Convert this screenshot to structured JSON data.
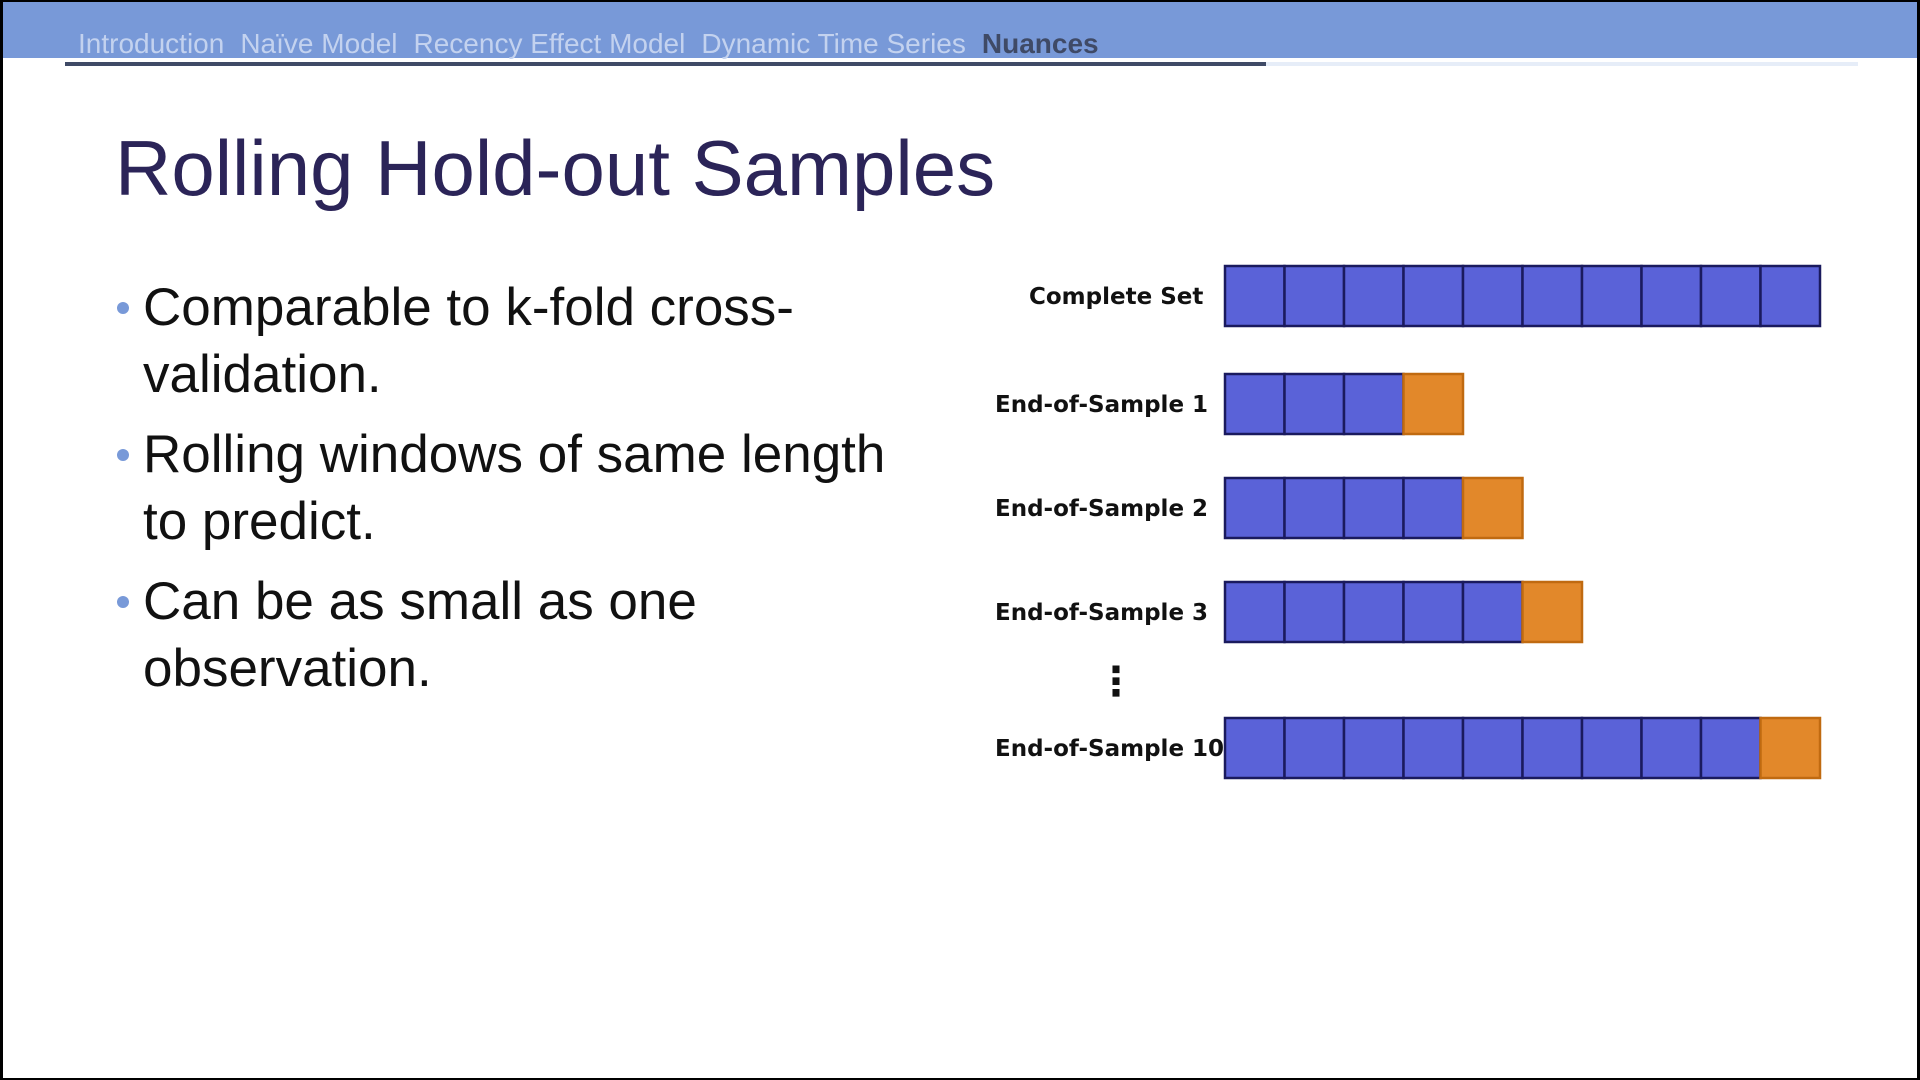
{
  "nav": {
    "items": [
      {
        "label": "Introduction",
        "active": false
      },
      {
        "label": "Naïve Model",
        "active": false
      },
      {
        "label": "Recency Effect Model",
        "active": false
      },
      {
        "label": "Dynamic Time Series",
        "active": false
      },
      {
        "label": "Nuances",
        "active": true
      }
    ],
    "progress_fraction": 0.67
  },
  "slide": {
    "title": "Rolling Hold-out Samples",
    "bullets": [
      "Comparable to k-fold cross-validation.",
      "Rolling windows of same length to predict.",
      "Can be as small as one observation."
    ]
  },
  "diagram": {
    "ellipsis": "⋮",
    "colors": {
      "train": "#5a62d8",
      "holdout": "#e2882a",
      "train_border": "#1a1a5e",
      "holdout_border": "#c06a10",
      "nav_bar": "#7899d8",
      "title_text": "#2b2458"
    },
    "rows": [
      {
        "label": "Complete Set",
        "train_cells": 10,
        "holdout_cells": 0
      },
      {
        "label": "End-of-Sample 1",
        "train_cells": 3,
        "holdout_cells": 1
      },
      {
        "label": "End-of-Sample 2",
        "train_cells": 4,
        "holdout_cells": 1
      },
      {
        "label": "End-of-Sample 3",
        "train_cells": 5,
        "holdout_cells": 1
      },
      {
        "label": "End-of-Sample 10",
        "train_cells": 9,
        "holdout_cells": 1
      }
    ]
  }
}
